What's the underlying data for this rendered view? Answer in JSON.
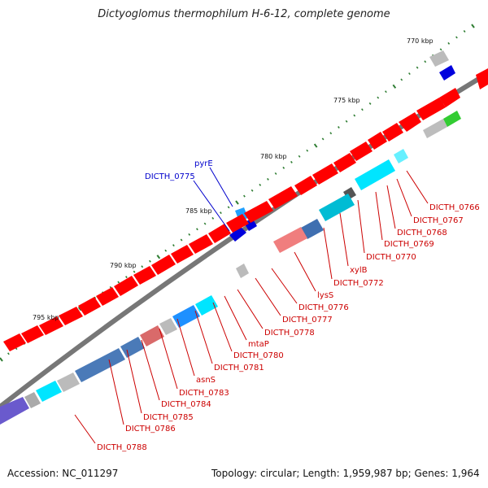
{
  "title": "Dictyoglomus thermophilum H-6-12, complete genome",
  "footer": {
    "accession": "Accession: NC_011297",
    "summary": "Topology: circular; Length: 1,959,987 bp; Genes: 1,964"
  },
  "colors": {
    "backbone": "#777777",
    "cds": "#ff0000",
    "rna_pseudo": "#1e90ff",
    "label_red": "#cc0000",
    "label_blue": "#0000cc",
    "tick": "#2e7d32"
  },
  "ticks": [
    {
      "label": "770 kbp"
    },
    {
      "label": "775 kbp"
    },
    {
      "label": "780 kbp"
    },
    {
      "label": "785 kbp"
    },
    {
      "label": "790 kbp"
    },
    {
      "label": "795 kbp"
    }
  ],
  "blue_labels": [
    "pyrE",
    "DICTH_0775"
  ],
  "red_labels": [
    "DICTH_0766",
    "DICTH_0767",
    "DICTH_0768",
    "DICTH_0769",
    "DICTH_0770",
    "xylB",
    "DICTH_0772",
    "lysS",
    "DICTH_0776",
    "DICTH_0777",
    "DICTH_0778",
    "mtaP",
    "DICTH_0780",
    "DICTH_0781",
    "asnS",
    "DICTH_0783",
    "DICTH_0784",
    "DICTH_0785",
    "DICTH_0786",
    "DICTH_0788"
  ]
}
